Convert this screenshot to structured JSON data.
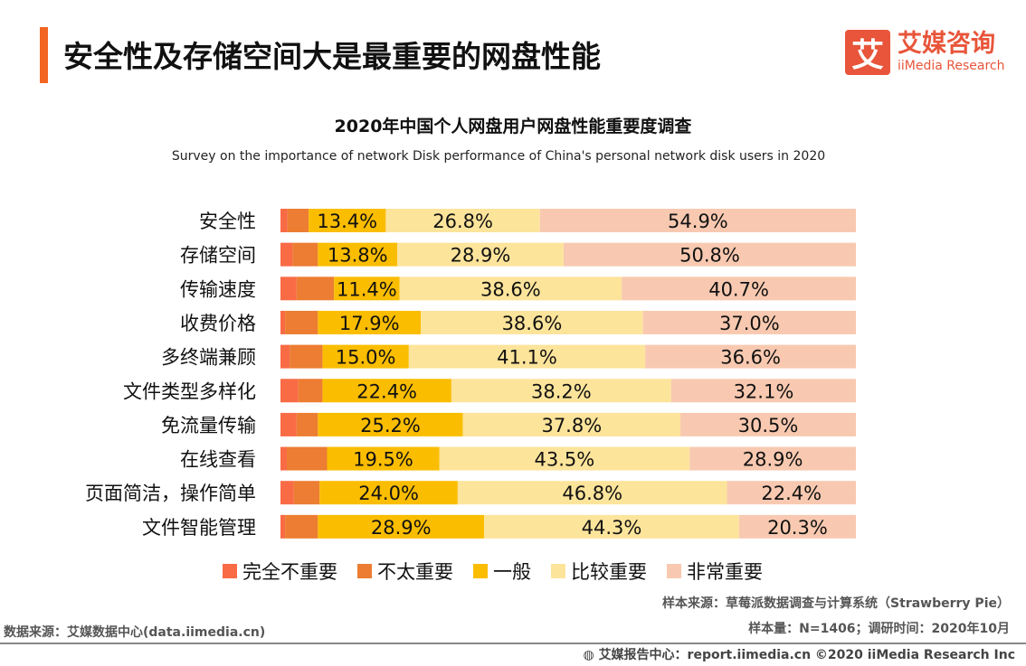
{
  "header": {
    "title": "安全性及存储空间大是最重要的网盘性能"
  },
  "logo": {
    "mark": "艾",
    "cn": "艾媒咨询",
    "en": "iiMedia Research"
  },
  "chart_data": {
    "type": "bar",
    "stacked": true,
    "orientation": "horizontal",
    "title": "2020年中国个人网盘用户网盘性能重要度调查",
    "subtitle": "Survey on the importance of network Disk performance of China's personal network disk users in 2020",
    "categories": [
      "安全性",
      "存储空间",
      "传输速度",
      "收费价格",
      "多终端兼顾",
      "文件类型多样化",
      "免流量传输",
      "在线查看",
      "页面简洁，操作简单",
      "文件智能管理"
    ],
    "series": [
      {
        "name": "完全不重要",
        "color": "#f96b45",
        "values": [
          1.2,
          2.1,
          2.8,
          0.8,
          1.6,
          3.1,
          2.8,
          1.1,
          2.3,
          0.8
        ]
      },
      {
        "name": "不太重要",
        "color": "#ec7d32",
        "values": [
          3.7,
          4.4,
          6.5,
          5.7,
          5.7,
          4.2,
          3.7,
          7.0,
          4.5,
          5.7
        ]
      },
      {
        "name": "一般",
        "color": "#fbbd00",
        "values": [
          13.4,
          13.8,
          11.4,
          17.9,
          15.0,
          22.4,
          25.2,
          19.5,
          24.0,
          28.9
        ]
      },
      {
        "name": "比较重要",
        "color": "#fde49b",
        "values": [
          26.8,
          28.9,
          38.6,
          38.6,
          41.1,
          38.2,
          37.8,
          43.5,
          46.8,
          44.3
        ]
      },
      {
        "name": "非常重要",
        "color": "#f8c9b0",
        "values": [
          54.9,
          50.8,
          40.7,
          37.0,
          36.6,
          32.1,
          30.5,
          28.9,
          22.4,
          20.3
        ]
      }
    ],
    "labeled_series": [
      2,
      3,
      4
    ],
    "xlim": [
      0,
      100
    ],
    "legend": "bottom"
  },
  "footer": {
    "sample_source": "样本来源：草莓派数据调查与计算系统（Strawberry Pie）",
    "sample_size": "样本量：N=1406；调研时间：2020年10月",
    "data_source": "数据来源：艾媒数据中心(data.iimedia.cn)",
    "report": "艾媒报告中心：report.iimedia.cn  ©2020  iiMedia Research  Inc"
  }
}
